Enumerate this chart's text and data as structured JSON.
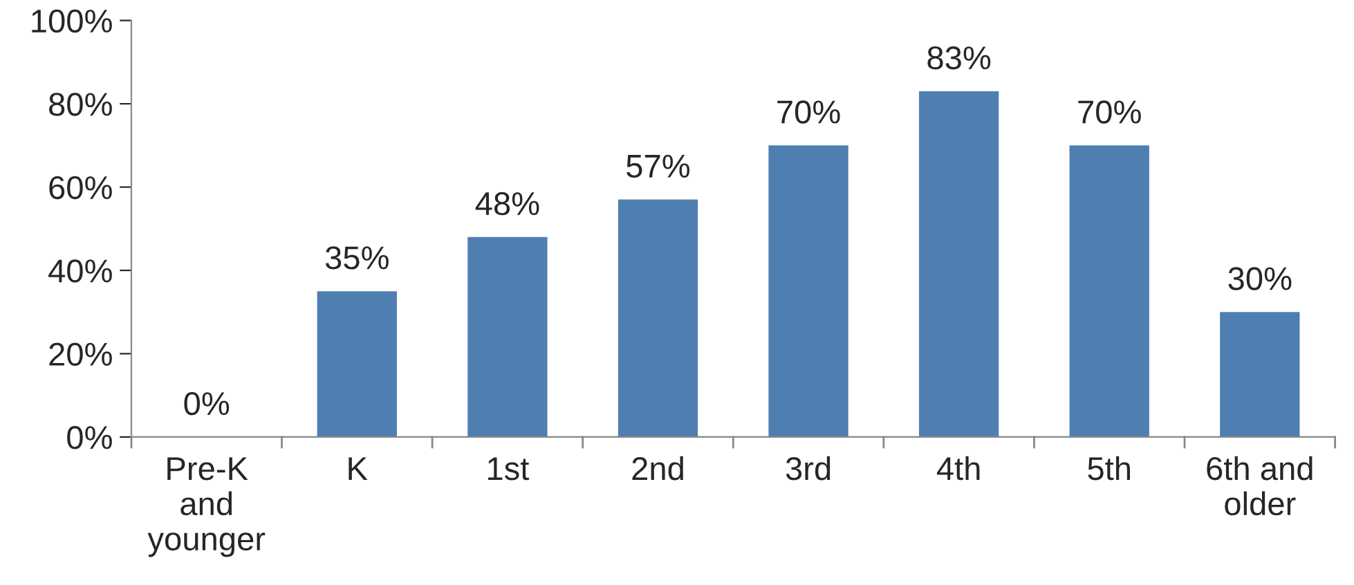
{
  "chart_data": {
    "type": "bar",
    "categories": [
      "Pre-K\nand\nyounger",
      "K",
      "1st",
      "2nd",
      "3rd",
      "4th",
      "5th",
      "6th and\nolder"
    ],
    "values": [
      0,
      35,
      48,
      57,
      70,
      83,
      70,
      30
    ],
    "color": "#4f7fb1",
    "ylim": [
      0,
      100
    ],
    "yticks": [
      {
        "value": 0,
        "label": "0%"
      },
      {
        "value": 20,
        "label": "20%"
      },
      {
        "value": 40,
        "label": "40%"
      },
      {
        "value": 60,
        "label": "60%"
      },
      {
        "value": 80,
        "label": "80%"
      },
      {
        "value": 100,
        "label": "100%"
      }
    ],
    "value_labels": [
      "0%",
      "35%",
      "48%",
      "57%",
      "70%",
      "83%",
      "70%",
      "30%"
    ],
    "grid": false
  }
}
